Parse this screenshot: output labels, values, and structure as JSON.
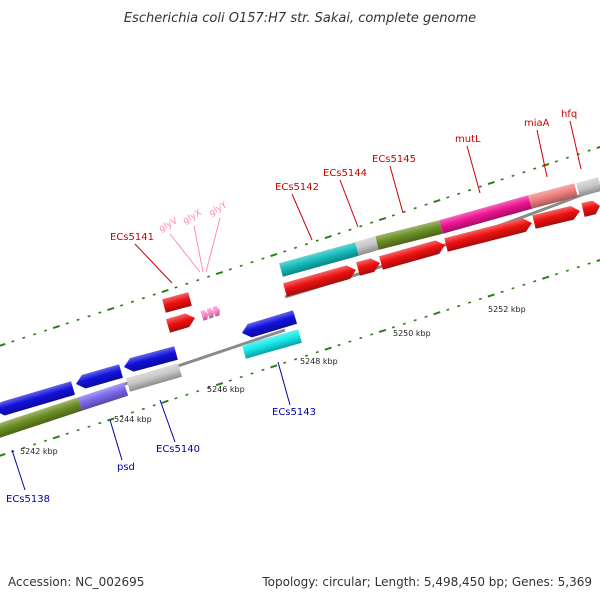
{
  "title": "Escherichia coli O157:H7 str. Sakai, complete genome",
  "footer": {
    "accession": "Accession: NC_002695",
    "topology": "Topology: circular; Length: 5,498,450 bp; Genes: 5,369"
  },
  "colors": {
    "background": "#ffffff",
    "backbone": "#888888",
    "tick": "#2e7d1a",
    "forward_label": "#cc0000",
    "reverse_label": "#0000aa",
    "trna_label": "#ff88bb"
  },
  "scale_labels": [
    "5242 kbp",
    "5244 kbp",
    "5246 kbp",
    "5248 kbp",
    "5250 kbp",
    "5252 kbp"
  ],
  "forward_labels": [
    "ECs5141",
    "ECs5142",
    "ECs5144",
    "ECs5145",
    "mutL",
    "miaA",
    "hfq"
  ],
  "trna_labels": [
    "glyV",
    "glyX",
    "glyY"
  ],
  "reverse_labels": [
    "ECs5138",
    "psd",
    "ECs5140",
    "ECs5143"
  ]
}
